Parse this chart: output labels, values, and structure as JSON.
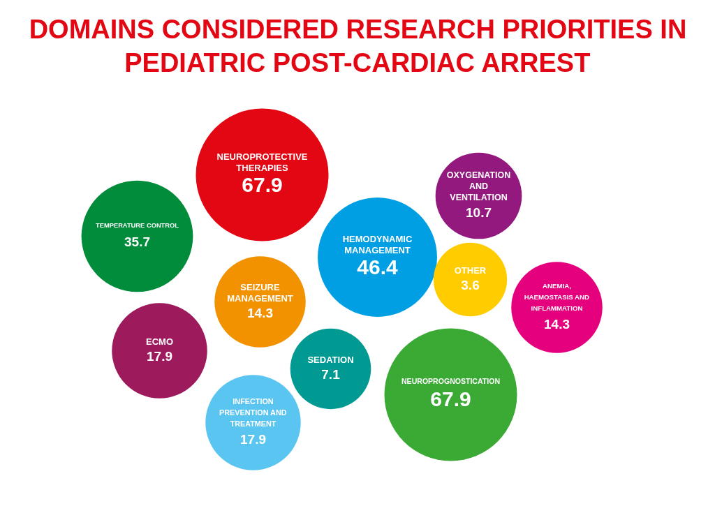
{
  "chart_data": {
    "type": "other",
    "title": "DOMAINS CONSIDERED RESEARCH PRIORITIES IN PEDIATRIC POST-CARDIAC ARREST",
    "categories": [
      "NEUROPROTECTIVE THERAPIES",
      "TEMPERATURE CONTROL",
      "OXYGENATION AND VENTILATION",
      "HEMODYNAMIC MANAGEMENT",
      "SEIZURE MANAGEMENT",
      "OTHER",
      "ANEMIA, HAEMOSTASIS AND INFLAMMATION",
      "ECMO",
      "SEDATION",
      "NEUROPROGNOSTICATION",
      "INFECTION PREVENTION AND TREATMENT"
    ],
    "values": [
      67.9,
      35.7,
      10.7,
      46.4,
      14.3,
      3.6,
      14.3,
      17.9,
      7.1,
      67.9,
      17.9
    ],
    "colors": [
      "#e30613",
      "#008c3a",
      "#93197f",
      "#009fe3",
      "#f39200",
      "#ffcc00",
      "#e5007d",
      "#9d1b5d",
      "#009a93",
      "#3aaa35",
      "#5bc5f2"
    ],
    "data_labels": true
  }
}
